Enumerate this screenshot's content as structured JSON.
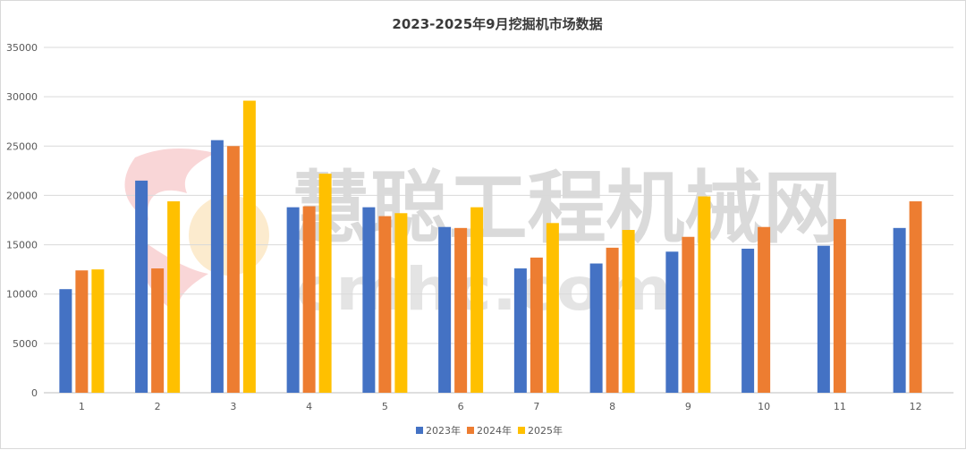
{
  "chart_data": {
    "type": "bar",
    "title": "2023-2025年9月挖掘机市场数据",
    "xlabel": "",
    "ylabel": "",
    "categories": [
      "1",
      "2",
      "3",
      "4",
      "5",
      "6",
      "7",
      "8",
      "9",
      "10",
      "11",
      "12"
    ],
    "series": [
      {
        "name": "2023年",
        "color": "#4472c4",
        "values": [
          10500,
          21500,
          25600,
          18800,
          18800,
          16800,
          12600,
          13100,
          14300,
          14600,
          14900,
          16700
        ]
      },
      {
        "name": "2024年",
        "color": "#ed7d31",
        "values": [
          12400,
          12600,
          25000,
          18900,
          17900,
          16700,
          13700,
          14700,
          15800,
          16800,
          17600,
          19400
        ]
      },
      {
        "name": "2025年",
        "color": "#ffc000",
        "values": [
          12500,
          19400,
          29600,
          22200,
          18200,
          18800,
          17200,
          16500,
          19900,
          null,
          null,
          null
        ]
      }
    ],
    "ylim": [
      0,
      35000
    ],
    "yticks": [
      0,
      5000,
      10000,
      15000,
      20000,
      25000,
      30000,
      35000
    ],
    "grid": true,
    "legend_position": "bottom"
  },
  "watermark": {
    "title": "慧聪工程机械网",
    "url": "cmhc.com"
  }
}
